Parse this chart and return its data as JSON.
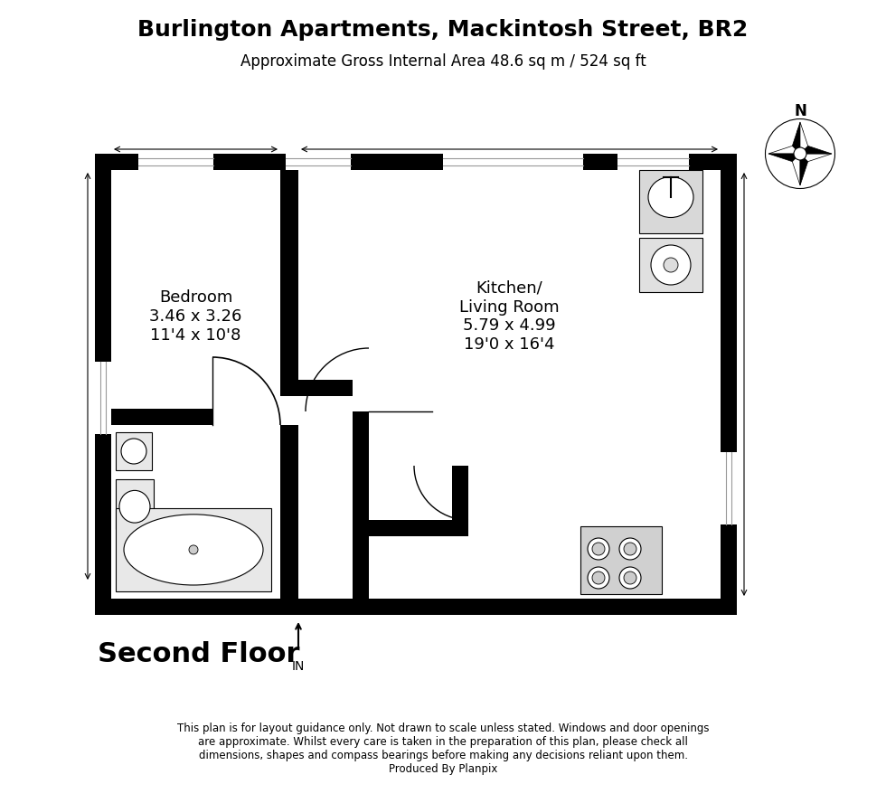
{
  "title": "Burlington Apartments, Mackintosh Street, BR2",
  "subtitle": "Approximate Gross Internal Area 48.6 sq m / 524 sq ft",
  "floor_label": "Second Floor",
  "entry_label": "IN",
  "bedroom_label": "Bedroom\n3.46 x 3.26\n11'4 x 10'8",
  "kitchen_label": "Kitchen/\nLiving Room\n5.79 x 4.99\n19'0 x 16'4",
  "disclaimer": "This plan is for layout guidance only. Not drawn to scale unless stated. Windows and door openings\nare approximate. Whilst every care is taken in the preparation of this plan, please check all\ndimensions, shapes and compass bearings before making any decisions reliant upon them.\nProduced By Planpix",
  "wall_color": "#000000",
  "bg_color": "#ffffff",
  "room_color": "#ffffff",
  "light_gray": "#e8e8e8",
  "med_gray": "#cccccc"
}
